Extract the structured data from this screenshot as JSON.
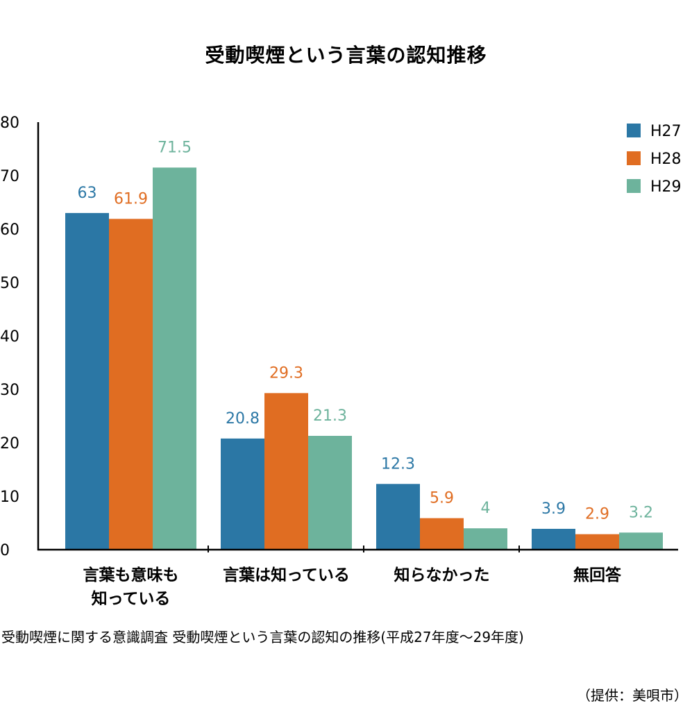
{
  "chart_data": {
    "type": "bar",
    "title": "受動喫煙という言葉の認知推移",
    "categories": [
      [
        "言葉も意味も",
        "知っている"
      ],
      [
        "言葉は知っている"
      ],
      [
        "知らなかった"
      ],
      [
        "無回答"
      ]
    ],
    "series": [
      {
        "name": "H27",
        "color": "#2b77a5",
        "values": [
          63,
          20.8,
          12.3,
          3.9
        ]
      },
      {
        "name": "H28",
        "color": "#e06d22",
        "values": [
          61.9,
          29.3,
          5.9,
          2.9
        ]
      },
      {
        "name": "H29",
        "color": "#6db39c",
        "values": [
          71.5,
          21.3,
          4,
          3.2
        ]
      }
    ],
    "value_labels": [
      [
        "63",
        "20.8",
        "12.3",
        "3.9"
      ],
      [
        "61.9",
        "29.3",
        "5.9",
        "2.9"
      ],
      [
        "71.5",
        "21.3",
        "4",
        "3.2"
      ]
    ],
    "yticks": [
      "0",
      "10",
      "20",
      "30",
      "40",
      "50",
      "60",
      "70",
      "80"
    ],
    "ylim": [
      0,
      80
    ],
    "grid": false,
    "legend_position": "top-right"
  },
  "caption": "受動喫煙に関する意識調査 受動喫煙という言葉の認知の推移(平成27年度〜29年度)",
  "credit": "（提供：美唄市）"
}
